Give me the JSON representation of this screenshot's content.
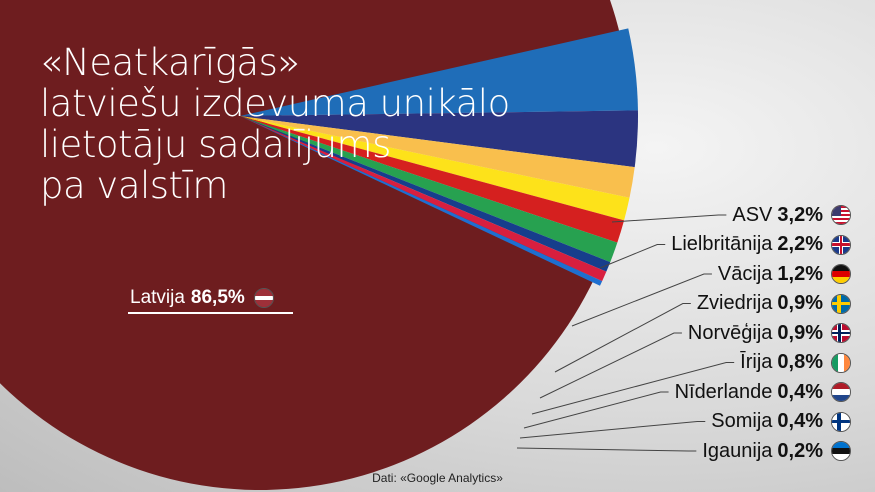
{
  "title": "«Neatkarīgās»\nlatviešu izdevuma unikālo\nlietotāju sadalījums\npa valstīm",
  "main_label": {
    "country": "Latvija",
    "value": "86,5%",
    "flag_icon": "latvia-flag-icon"
  },
  "source": "Dati: «Google Analytics»",
  "colors": {
    "main": "#6e1d1f",
    "slices": [
      "#1f6db8",
      "#2b3480",
      "#f9bf4d",
      "#fde21a",
      "#d5201f",
      "#27a150",
      "#173e8c",
      "#d81f3f",
      "#1e6fd0",
      "#1a1a1a"
    ]
  },
  "legend": [
    {
      "country": "ASV",
      "value": "3,2%",
      "flag_icon": "usa-flag-icon"
    },
    {
      "country": "Lielbritānija",
      "value": "2,2%",
      "flag_icon": "uk-flag-icon"
    },
    {
      "country": "Vācija",
      "value": "1,2%",
      "flag_icon": "germany-flag-icon"
    },
    {
      "country": "Zviedrija",
      "value": "0,9%",
      "flag_icon": "sweden-flag-icon"
    },
    {
      "country": "Norvēģija",
      "value": "0,9%",
      "flag_icon": "norway-flag-icon"
    },
    {
      "country": "Īrija",
      "value": "0,8%",
      "flag_icon": "ireland-flag-icon"
    },
    {
      "country": "Nīderlande",
      "value": "0,4%",
      "flag_icon": "netherlands-flag-icon"
    },
    {
      "country": "Somija",
      "value": "0,4%",
      "flag_icon": "finland-flag-icon"
    },
    {
      "country": "Igaunija",
      "value": "0,2%",
      "flag_icon": "estonia-flag-icon"
    }
  ],
  "chart_data": {
    "type": "pie",
    "title": "«Neatkarīgās» latviešu izdevuma unikālo lietotāju sadalījums pa valstīm",
    "categories": [
      "Latvija",
      "ASV",
      "Lielbritānija",
      "Vācija",
      "Zviedrija",
      "Norvēģija",
      "Īrija",
      "Nīderlande",
      "Somija",
      "Igaunija"
    ],
    "values": [
      86.5,
      3.2,
      2.2,
      1.2,
      0.9,
      0.9,
      0.8,
      0.4,
      0.4,
      0.2
    ],
    "unit": "%",
    "legend_placement": "right"
  }
}
